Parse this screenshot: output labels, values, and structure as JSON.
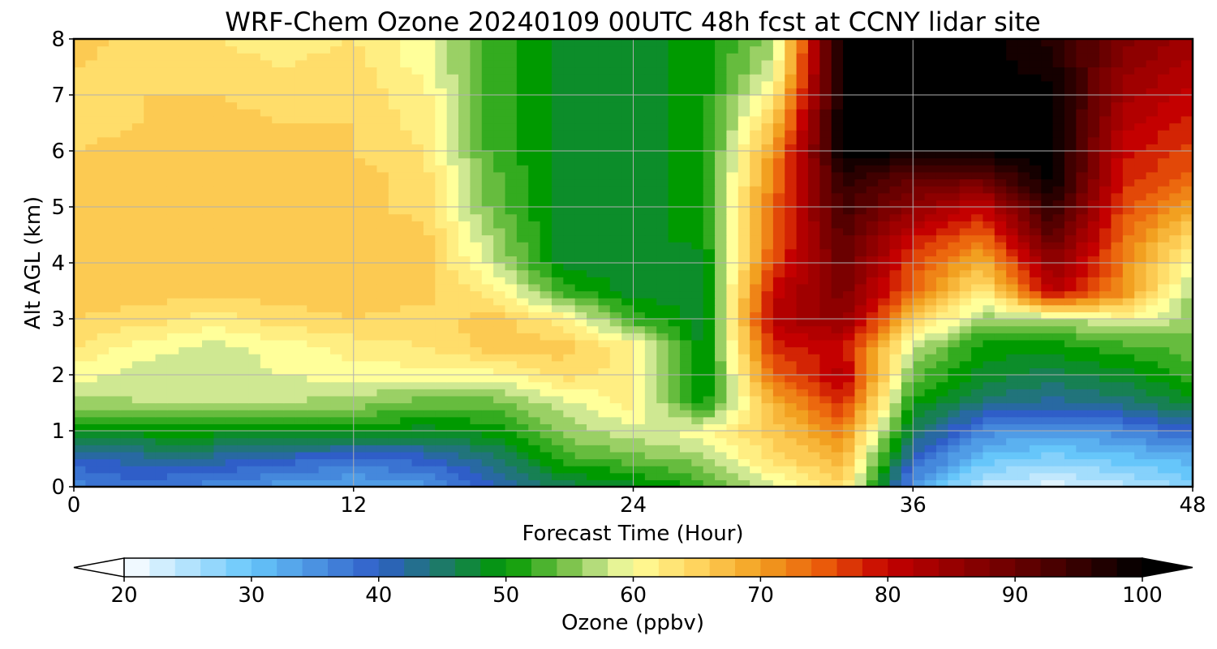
{
  "chart_data": {
    "type": "heatmap",
    "title": "WRF-Chem Ozone  20240109 00UTC 48h fcst at CCNY lidar site",
    "xlabel": "Forecast Time (Hour)",
    "ylabel": "Alt AGL (km)",
    "xlim": [
      0,
      48
    ],
    "ylim": [
      0,
      8
    ],
    "x_ticks": [
      0,
      12,
      24,
      36,
      48
    ],
    "y_ticks": [
      0,
      1,
      2,
      3,
      4,
      5,
      6,
      7,
      8
    ],
    "grid": true,
    "x": [
      0,
      3,
      6,
      9,
      12,
      15,
      18,
      21,
      24,
      27,
      30,
      33,
      36,
      39,
      42,
      45,
      48
    ],
    "y": [
      0,
      0.5,
      1,
      1.5,
      2,
      2.5,
      3,
      3.5,
      4,
      4.5,
      5,
      5.5,
      6,
      6.5,
      7,
      7.5,
      8
    ],
    "z": [
      [
        36,
        38,
        36,
        34,
        33,
        34,
        40,
        46,
        48,
        52,
        58,
        64,
        34,
        24,
        22,
        24,
        28
      ],
      [
        40,
        42,
        42,
        40,
        38,
        40,
        44,
        52,
        54,
        56,
        64,
        68,
        40,
        30,
        28,
        30,
        32
      ],
      [
        48,
        50,
        50,
        50,
        50,
        48,
        50,
        56,
        58,
        60,
        66,
        72,
        46,
        36,
        34,
        36,
        40
      ],
      [
        56,
        57,
        57,
        57,
        56,
        54,
        54,
        58,
        62,
        50,
        68,
        78,
        50,
        44,
        42,
        44,
        48
      ],
      [
        60,
        58,
        58,
        59,
        60,
        60,
        60,
        64,
        62,
        48,
        74,
        82,
        54,
        48,
        46,
        48,
        52
      ],
      [
        63,
        60,
        58,
        60,
        62,
        63,
        66,
        66,
        62,
        48,
        78,
        80,
        58,
        50,
        50,
        52,
        54
      ],
      [
        65,
        64,
        62,
        64,
        65,
        64,
        66,
        62,
        52,
        48,
        82,
        86,
        66,
        56,
        56,
        60,
        56
      ],
      [
        66,
        66,
        66,
        66,
        66,
        66,
        62,
        52,
        48,
        48,
        80,
        88,
        74,
        62,
        82,
        72,
        56
      ],
      [
        66,
        66,
        66,
        66,
        66,
        66,
        58,
        48,
        48,
        48,
        76,
        90,
        76,
        68,
        86,
        72,
        60
      ],
      [
        66,
        66,
        66,
        66,
        66,
        66,
        56,
        48,
        48,
        50,
        74,
        92,
        80,
        74,
        92,
        74,
        64
      ],
      [
        66,
        66,
        66,
        66,
        66,
        64,
        54,
        48,
        48,
        50,
        74,
        94,
        86,
        80,
        96,
        76,
        70
      ],
      [
        66,
        66,
        66,
        66,
        66,
        64,
        54,
        48,
        48,
        50,
        72,
        96,
        90,
        90,
        100,
        78,
        74
      ],
      [
        65,
        66,
        66,
        65,
        65,
        63,
        52,
        48,
        48,
        50,
        70,
        100,
        100,
        100,
        100,
        80,
        76
      ],
      [
        64,
        65,
        66,
        65,
        65,
        62,
        52,
        48,
        48,
        50,
        66,
        100,
        100,
        100,
        100,
        82,
        78
      ],
      [
        64,
        65,
        65,
        64,
        64,
        62,
        52,
        48,
        48,
        50,
        62,
        100,
        100,
        100,
        100,
        84,
        80
      ],
      [
        65,
        64,
        64,
        63,
        64,
        60,
        52,
        48,
        48,
        50,
        58,
        100,
        100,
        100,
        98,
        86,
        82
      ],
      [
        66,
        64,
        63,
        62,
        63,
        60,
        52,
        48,
        48,
        50,
        56,
        100,
        100,
        100,
        96,
        88,
        84
      ]
    ],
    "colorbar": {
      "label": "Ozone  (ppbv)",
      "min": 20,
      "max": 100,
      "ticks": [
        20,
        30,
        40,
        50,
        60,
        70,
        80,
        90,
        100
      ],
      "extend": "both",
      "stops": [
        [
          20,
          "#ffffff"
        ],
        [
          30,
          "#66c6fa"
        ],
        [
          40,
          "#2f5ec8"
        ],
        [
          45,
          "#1d7a68"
        ],
        [
          50,
          "#009a00"
        ],
        [
          55,
          "#7fc44e"
        ],
        [
          58,
          "#cfe892"
        ],
        [
          60,
          "#ffff9a"
        ],
        [
          65,
          "#ffd45e"
        ],
        [
          70,
          "#f2a020"
        ],
        [
          75,
          "#ea5a0a"
        ],
        [
          80,
          "#c40000"
        ],
        [
          90,
          "#6a0000"
        ],
        [
          100,
          "#000000"
        ]
      ]
    }
  }
}
